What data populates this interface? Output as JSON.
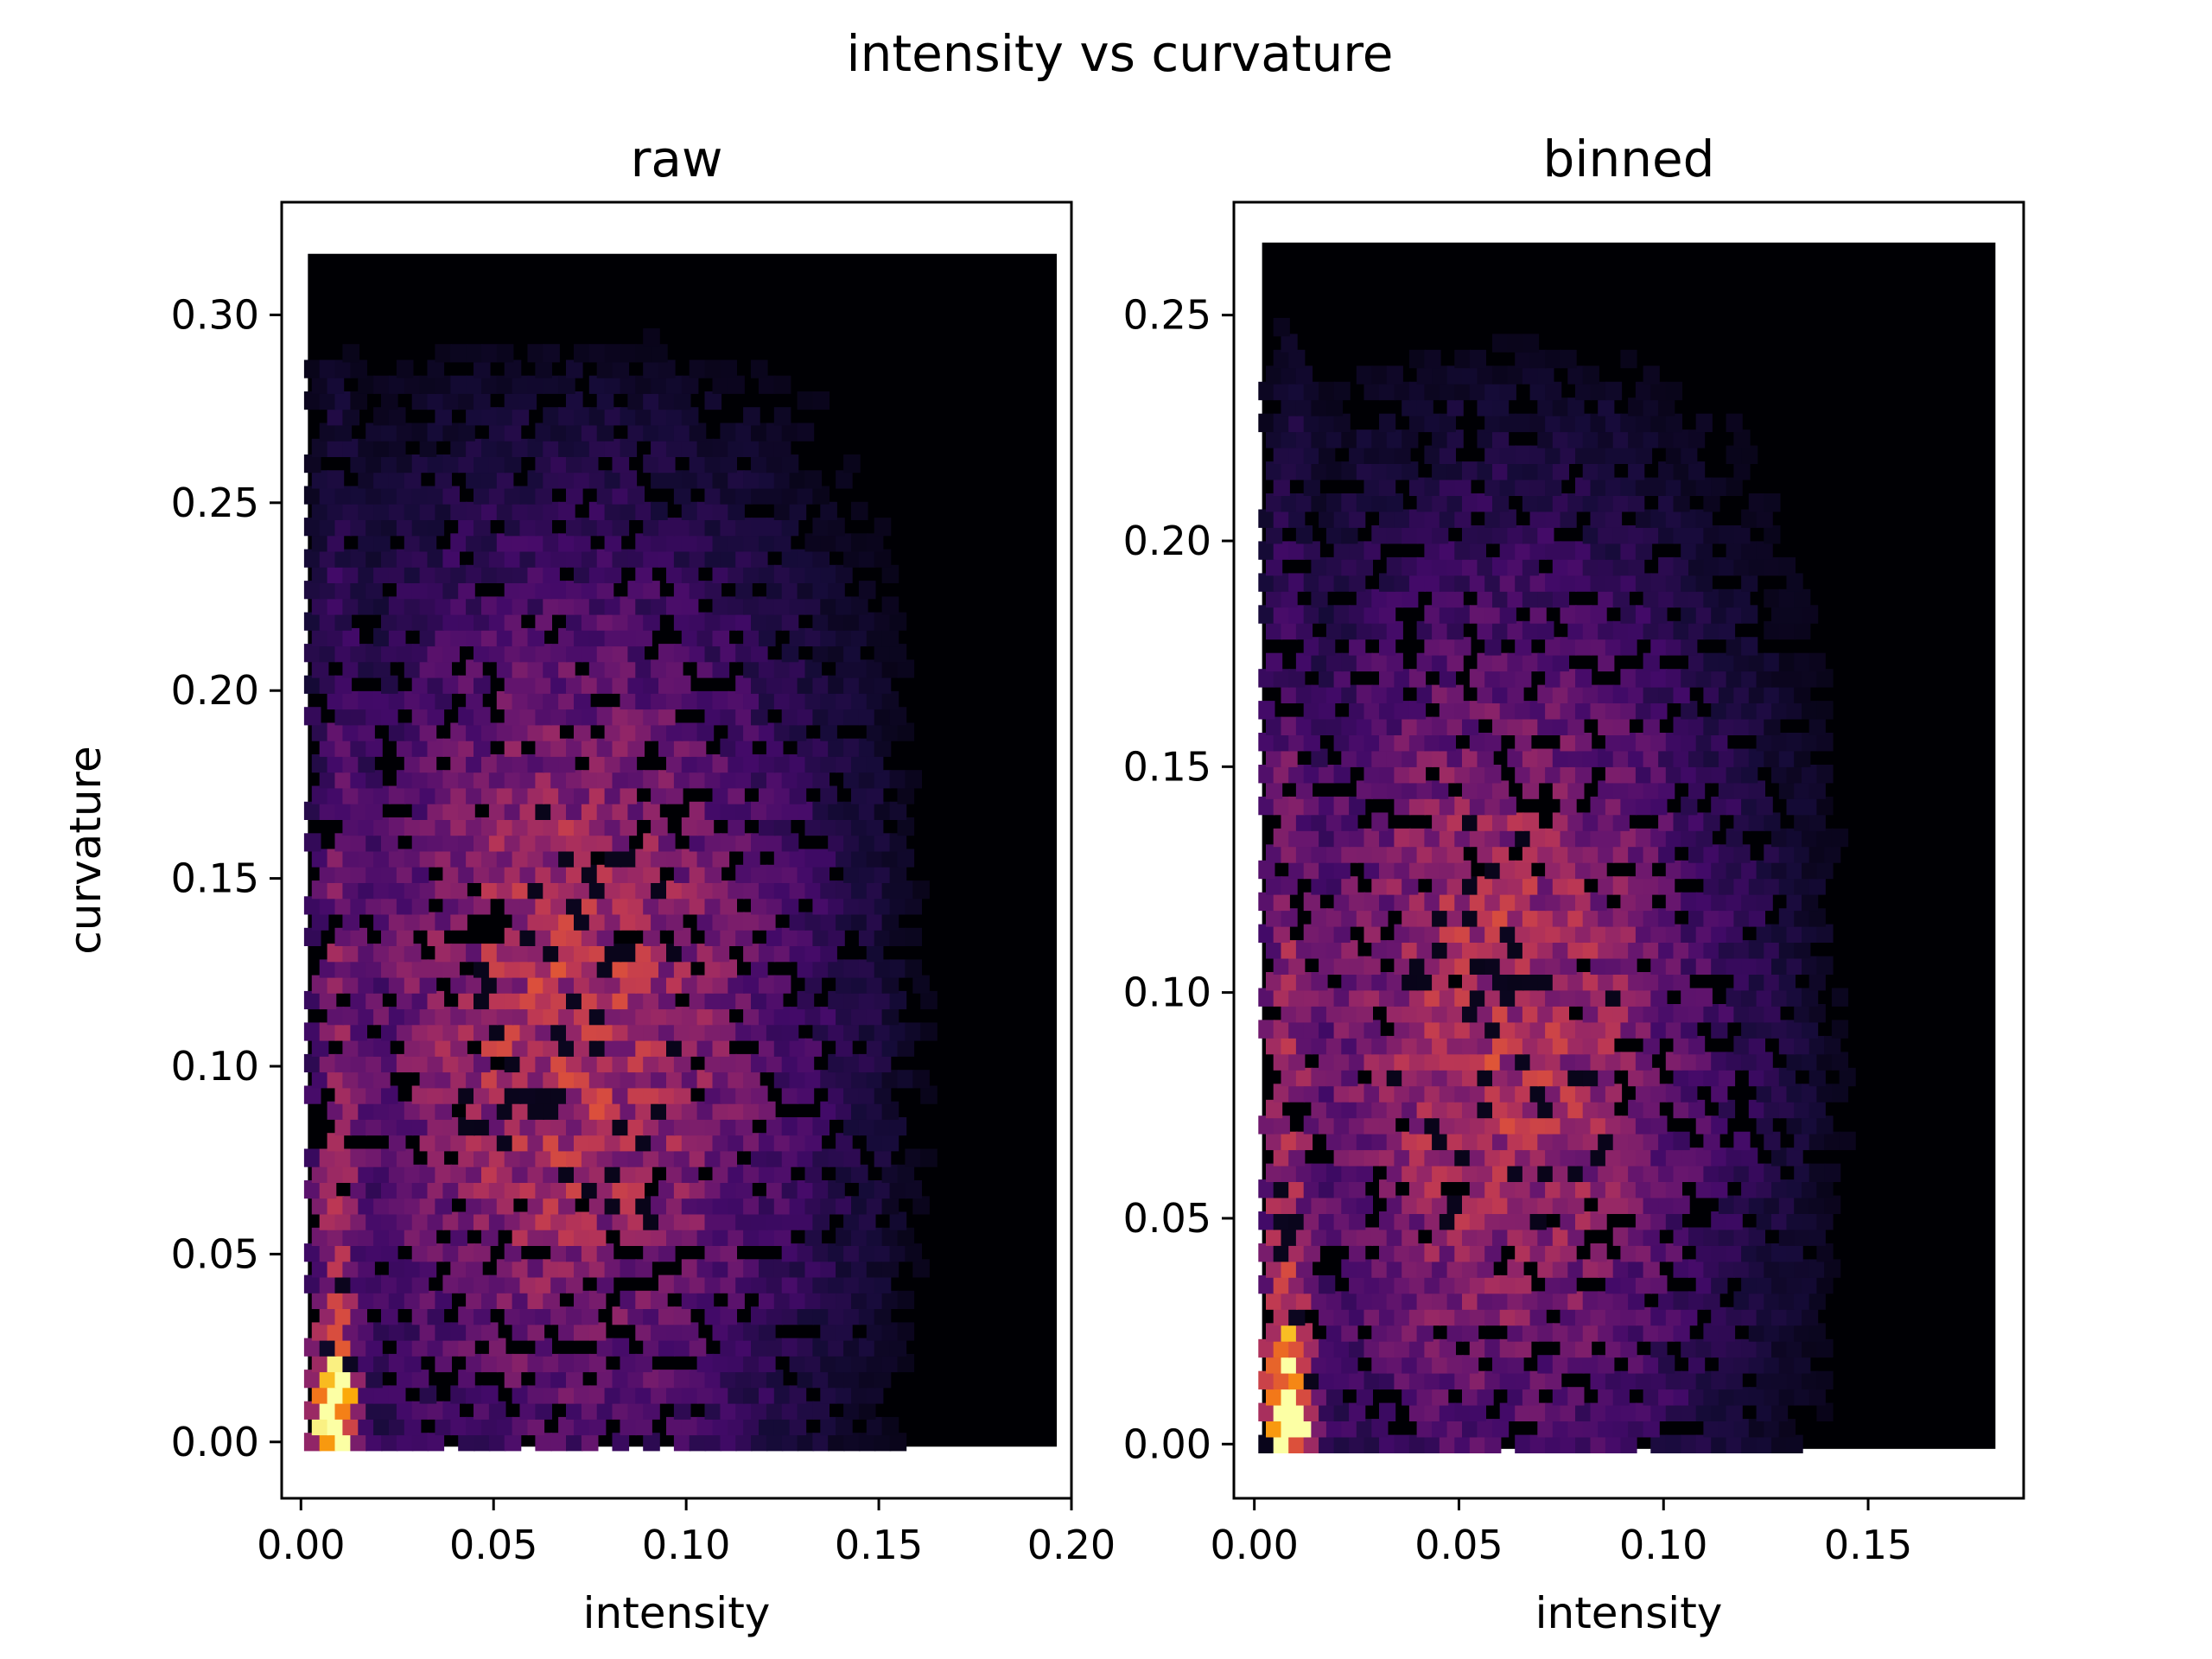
{
  "figure": {
    "title": "intensity vs curvature"
  },
  "chart_data": [
    {
      "type": "heatmap",
      "subtype": "hexbin",
      "title": "raw",
      "xlabel": "intensity",
      "ylabel": "curvature",
      "xlim": [
        -0.005,
        0.2
      ],
      "ylim": [
        -0.015,
        0.33
      ],
      "xticks": [
        0.0,
        0.05,
        0.1,
        0.15,
        0.2
      ],
      "xtick_labels": [
        "0.00",
        "0.05",
        "0.10",
        "0.15",
        "0.20"
      ],
      "yticks": [
        0.0,
        0.05,
        0.1,
        0.15,
        0.2,
        0.25,
        0.3
      ],
      "ytick_labels": [
        "0.00",
        "0.05",
        "0.10",
        "0.15",
        "0.20",
        "0.25",
        "0.30"
      ],
      "data_extent": {
        "x": [
          0.003,
          0.195
        ],
        "y": [
          0.0,
          0.315
        ]
      },
      "colormap": "inferno",
      "grid": false,
      "density": {
        "hotspot": {
          "x": 0.009,
          "y": 0.008
        },
        "bulk_center": {
          "x": 0.07,
          "y": 0.11
        },
        "bulk_spread": {
          "x": 0.045,
          "y": 0.09
        },
        "x_fade": 0.15,
        "y_top": 0.28
      }
    },
    {
      "type": "heatmap",
      "subtype": "hexbin",
      "title": "binned",
      "xlabel": "intensity",
      "ylabel": "",
      "xlim": [
        -0.005,
        0.188
      ],
      "ylim": [
        -0.012,
        0.275
      ],
      "xticks": [
        0.0,
        0.05,
        0.1,
        0.15
      ],
      "xtick_labels": [
        "0.00",
        "0.05",
        "0.10",
        "0.15"
      ],
      "yticks": [
        0.0,
        0.05,
        0.1,
        0.15,
        0.2,
        0.25
      ],
      "ytick_labels": [
        "0.00",
        "0.05",
        "0.10",
        "0.15",
        "0.20",
        "0.25"
      ],
      "data_extent": {
        "x": [
          0.003,
          0.18
        ],
        "y": [
          0.0,
          0.265
        ]
      },
      "colormap": "inferno",
      "grid": false,
      "density": {
        "hotspot": {
          "x": 0.008,
          "y": 0.006
        },
        "bulk_center": {
          "x": 0.06,
          "y": 0.09
        },
        "bulk_spread": {
          "x": 0.04,
          "y": 0.075
        },
        "x_fade": 0.135,
        "y_top": 0.23
      }
    }
  ]
}
